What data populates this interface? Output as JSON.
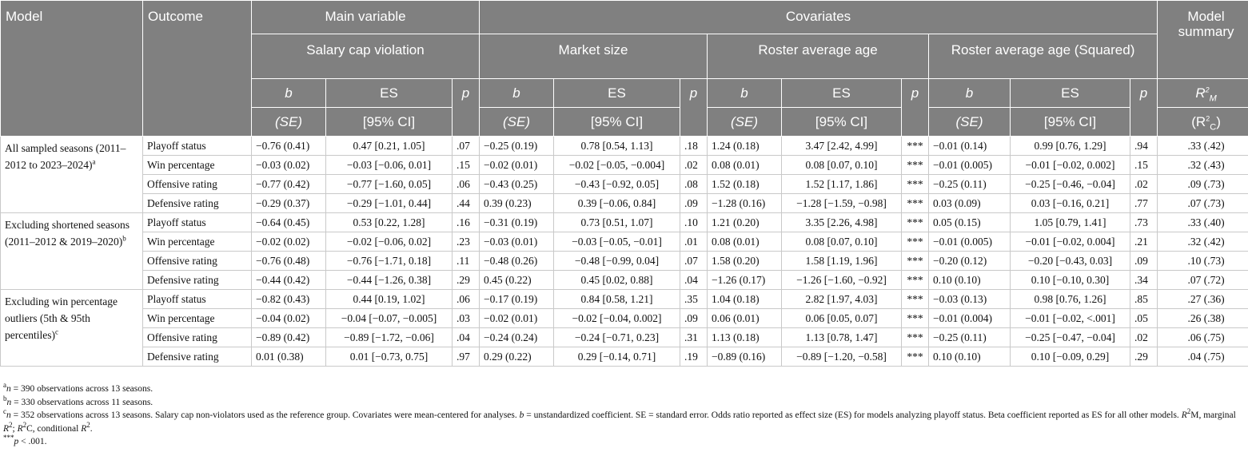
{
  "header": {
    "model": "Model",
    "outcome": "Outcome",
    "main_variable": "Main variable",
    "covariates": "Covariates",
    "model_summary": "Model summary",
    "salary_cap": "Salary cap violation",
    "market_size": "Market size",
    "roster_age": "Roster average age",
    "roster_age_sq": "Roster average age (Squared)",
    "b": "b",
    "es": "ES",
    "p": "p",
    "se": "(SE)",
    "ci": "[95% CI]",
    "r2m_base": "R",
    "r2m_sup": "2",
    "r2m_sub": "M",
    "r2c_open": "(R",
    "r2c_sup": "2",
    "r2c_sub": "C",
    "r2c_close": ")"
  },
  "groups": [
    {
      "label": "All sampled seasons (2011–2012 to 2023–2024)",
      "mark": "a",
      "rows": [
        [
          "Playoff status",
          "−0.76 (0.41)",
          "0.47 [0.21, 1.05]",
          ".07",
          "−0.25 (0.19)",
          "0.78 [0.54, 1.13]",
          ".18",
          "1.24 (0.18)",
          "3.47 [2.42, 4.99]",
          "***",
          "−0.01 (0.14)",
          "0.99 [0.76, 1.29]",
          ".94",
          ".33 (.42)"
        ],
        [
          "Win percentage",
          "−0.03 (0.02)",
          "−0.03 [−0.06, 0.01]",
          ".15",
          "−0.02 (0.01)",
          "−0.02 [−0.05, −0.004]",
          ".02",
          "0.08 (0.01)",
          "0.08 [0.07, 0.10]",
          "***",
          "−0.01 (0.005)",
          "−0.01 [−0.02, 0.002]",
          ".15",
          ".32 (.43)"
        ],
        [
          "Offensive rating",
          "−0.77 (0.42)",
          "−0.77 [−1.60, 0.05]",
          ".06",
          "−0.43 (0.25)",
          "−0.43 [−0.92, 0.05]",
          ".08",
          "1.52 (0.18)",
          "1.52 [1.17, 1.86]",
          "***",
          "−0.25 (0.11)",
          "−0.25 [−0.46, −0.04]",
          ".02",
          ".09 (.73)"
        ],
        [
          "Defensive rating",
          "−0.29 (0.37)",
          "−0.29 [−1.01, 0.44]",
          ".44",
          "0.39 (0.23)",
          "0.39 [−0.06, 0.84]",
          ".09",
          "−1.28 (0.16)",
          "−1.28 [−1.59, −0.98]",
          "***",
          "0.03 (0.09)",
          "0.03 [−0.16, 0.21]",
          ".77",
          ".07 (.73)"
        ]
      ]
    },
    {
      "label": "Excluding shortened seasons (2011–2012 & 2019–2020)",
      "mark": "b",
      "rows": [
        [
          "Playoff status",
          "−0.64 (0.45)",
          "0.53 [0.22, 1.28]",
          ".16",
          "−0.31 (0.19)",
          "0.73 [0.51, 1.07]",
          ".10",
          "1.21 (0.20)",
          "3.35 [2.26, 4.98]",
          "***",
          "0.05 (0.15)",
          "1.05 [0.79, 1.41]",
          ".73",
          ".33 (.40)"
        ],
        [
          "Win percentage",
          "−0.02 (0.02)",
          "−0.02 [−0.06, 0.02]",
          ".23",
          "−0.03 (0.01)",
          "−0.03 [−0.05, −0.01]",
          ".01",
          "0.08 (0.01)",
          "0.08 [0.07, 0.10]",
          "***",
          "−0.01 (0.005)",
          "−0.01 [−0.02, 0.004]",
          ".21",
          ".32 (.42)"
        ],
        [
          "Offensive rating",
          "−0.76 (0.48)",
          "−0.76 [−1.71, 0.18]",
          ".11",
          "−0.48 (0.26)",
          "−0.48 [−0.99, 0.04]",
          ".07",
          "1.58 (0.20)",
          "1.58 [1.19, 1.96]",
          "***",
          "−0.20 (0.12)",
          "−0.20 [−0.43, 0.03]",
          ".09",
          ".10 (.73)"
        ],
        [
          "Defensive rating",
          "−0.44 (0.42)",
          "−0.44 [−1.26, 0.38]",
          ".29",
          "0.45 (0.22)",
          "0.45 [0.02, 0.88]",
          ".04",
          "−1.26 (0.17)",
          "−1.26 [−1.60, −0.92]",
          "***",
          "0.10 (0.10)",
          "0.10 [−0.10, 0.30]",
          ".34",
          ".07 (.72)"
        ]
      ]
    },
    {
      "label": "Excluding win percentage outliers (5th & 95th percentiles)",
      "mark": "c",
      "rows": [
        [
          "Playoff status",
          "−0.82 (0.43)",
          "0.44 [0.19, 1.02]",
          ".06",
          "−0.17 (0.19)",
          "0.84 [0.58, 1.21]",
          ".35",
          "1.04 (0.18)",
          "2.82 [1.97, 4.03]",
          "***",
          "−0.03 (0.13)",
          "0.98 [0.76, 1.26]",
          ".85",
          ".27 (.36)"
        ],
        [
          "Win percentage",
          "−0.04 (0.02)",
          "−0.04 [−0.07, −0.005]",
          ".03",
          "−0.02 (0.01)",
          "−0.02 [−0.04, 0.002]",
          ".09",
          "0.06 (0.01)",
          "0.06 [0.05, 0.07]",
          "***",
          "−0.01 (0.004)",
          "−0.01 [−0.02, <.001]",
          ".05",
          ".26 (.38)"
        ],
        [
          "Offensive rating",
          "−0.89 (0.42)",
          "−0.89 [−1.72, −0.06]",
          ".04",
          "−0.24 (0.24)",
          "−0.24 [−0.71, 0.23]",
          ".31",
          "1.13 (0.18)",
          "1.13 [0.78, 1.47]",
          "***",
          "−0.25 (0.11)",
          "−0.25 [−0.47, −0.04]",
          ".02",
          ".06 (.75)"
        ],
        [
          "Defensive rating",
          "0.01 (0.38)",
          "0.01 [−0.73, 0.75]",
          ".97",
          "0.29 (0.22)",
          "0.29 [−0.14, 0.71]",
          ".19",
          "−0.89 (0.16)",
          "−0.89 [−1.20, −0.58]",
          "***",
          "0.10 (0.10)",
          "0.10 [−0.09, 0.29]",
          ".29",
          ".04 (.75)"
        ]
      ]
    }
  ],
  "notes": {
    "a_mark": "a",
    "a_n": "n",
    "a_text": " = 390 observations across 13 seasons.",
    "b_mark": "b",
    "b_n": "n",
    "b_text": " = 330 observations across 11 seasons.",
    "c_mark": "c",
    "c_n": "n",
    "c_text1": " = 352 observations across 13 seasons. Salary cap non-violators used as the reference group. Covariates were mean-centered for analyses. ",
    "c_b": "b",
    "c_text2": " = unstandardized coefficient. SE = standard error. Odds ratio reported as effect size (ES) for models analyzing playoff status. Beta coefficient reported as ES for all other models. ",
    "c_r": "R",
    "c_sup": "2",
    "c_text3": "M, marginal ",
    "c_r2": "R",
    "c_sup2": "2",
    "c_text4": "; ",
    "c_r3": "R",
    "c_sup3": "2",
    "c_text5": "C, conditional ",
    "c_r4": "R",
    "c_sup4": "2",
    "c_text6": ".",
    "sig_mark": "***",
    "sig_p": "p",
    "sig_text": " < .001."
  }
}
